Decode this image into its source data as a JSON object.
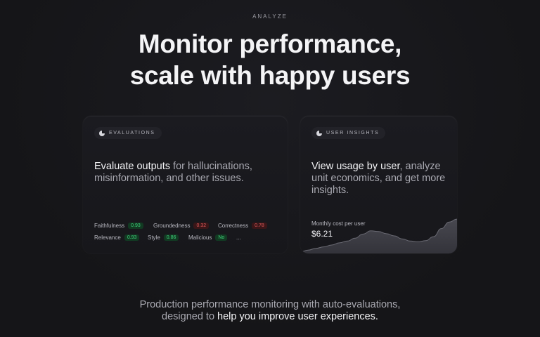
{
  "eyebrow": "ANALYZE",
  "headline": {
    "line1": "Monitor performance,",
    "line2": "scale with happy users"
  },
  "evaluations_card": {
    "pill_label": "EVALUATIONS",
    "pill_icon": "half-circle-icon",
    "highlight": "Evaluate outputs",
    "text": " for hallucinations, misinformation, and other issues.",
    "metrics": [
      [
        {
          "name": "Faithfulness",
          "score": "0.93",
          "status": "good"
        },
        {
          "name": "Groundedness",
          "score": "0.32",
          "status": "bad"
        },
        {
          "name": "Correctness",
          "score": "0.78",
          "status": "bad"
        }
      ],
      [
        {
          "name": "Relevance",
          "score": "0.93",
          "status": "good"
        },
        {
          "name": "Style",
          "score": "0.86",
          "status": "good"
        },
        {
          "name": "Malicious",
          "score": "No",
          "status": "good"
        }
      ]
    ],
    "more": "..."
  },
  "user_insights_card": {
    "pill_label": "USER INSIGHTS",
    "pill_icon": "half-circle-icon",
    "highlight": "View usage by user",
    "text": ", analyze unit economics, and get more insights.",
    "chart_label": "Monthly cost per user",
    "chart_value": "$6.21"
  },
  "footer": {
    "line1": "Production performance monitoring with auto-evaluations,",
    "line2_plain": "designed to ",
    "line2_highlight": "help you improve user experiences."
  },
  "colors": {
    "background": "#16161a",
    "good_badge_text": "#3fd17a",
    "bad_badge_text": "#e05a5a"
  },
  "chart_data": {
    "type": "area",
    "title": "Monthly cost per user",
    "x": [
      0,
      1,
      2,
      3,
      4,
      5,
      6,
      7,
      8,
      9,
      10,
      11,
      12,
      13,
      14,
      15,
      16,
      17,
      18,
      19,
      20
    ],
    "values": [
      0.4,
      0.9,
      1.4,
      1.8,
      2.3,
      2.9,
      3.4,
      4.2,
      5.3,
      6.2,
      6.0,
      5.4,
      4.8,
      4.0,
      3.4,
      3.2,
      3.5,
      4.6,
      6.8,
      8.6,
      9.4
    ],
    "ylim": [
      0,
      10
    ],
    "grid": false,
    "legend": "none"
  }
}
